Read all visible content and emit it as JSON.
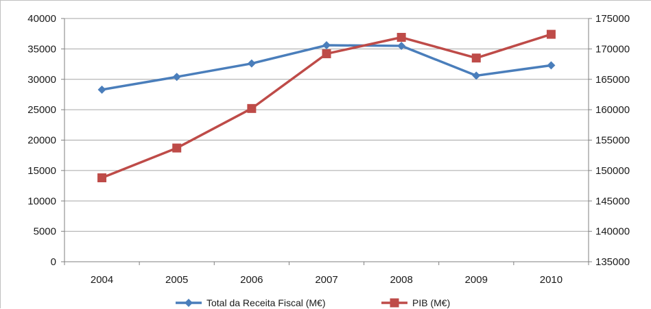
{
  "chart_data": {
    "type": "line",
    "title": "",
    "xlabel": "",
    "ylabel": "",
    "categories": [
      "2004",
      "2005",
      "2006",
      "2007",
      "2008",
      "2009",
      "2010"
    ],
    "y_left": {
      "min": 0,
      "max": 40000,
      "step": 5000,
      "tick_labels": [
        "0",
        "5000",
        "10000",
        "15000",
        "20000",
        "25000",
        "30000",
        "35000",
        "40000"
      ]
    },
    "y_right": {
      "min": 135000,
      "max": 175000,
      "step": 5000,
      "tick_labels": [
        "135000",
        "140000",
        "145000",
        "150000",
        "155000",
        "160000",
        "165000",
        "170000",
        "175000"
      ]
    },
    "series": [
      {
        "name": "Total da Receita Fiscal (M€)",
        "axis": "left",
        "color": "#4a7ebb",
        "marker": "diamond",
        "values": [
          28300,
          30400,
          32600,
          35600,
          35500,
          30600,
          32300
        ]
      },
      {
        "name": "PIB (M€)",
        "axis": "right",
        "color": "#be4b48",
        "marker": "square",
        "values": [
          148800,
          153700,
          160200,
          169200,
          171900,
          168500,
          172400
        ]
      }
    ],
    "grid": true,
    "legend": "bottom"
  }
}
